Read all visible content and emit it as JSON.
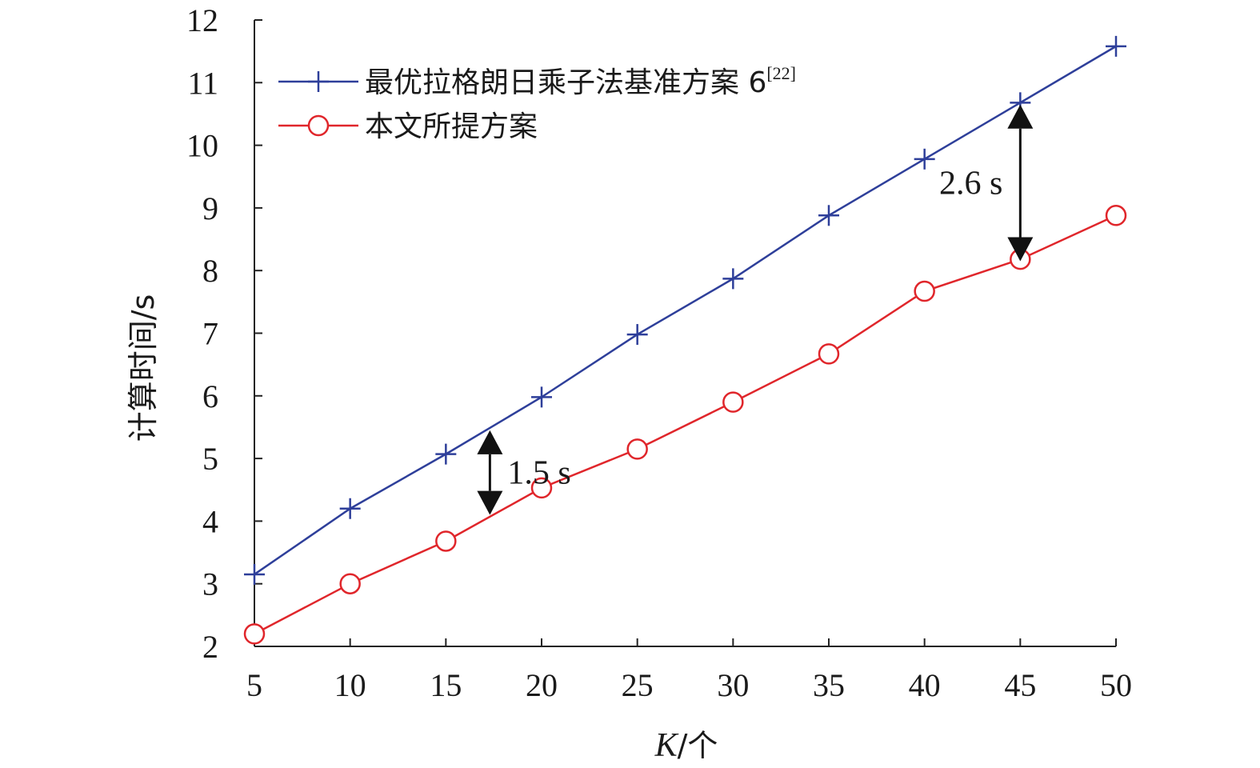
{
  "chart_data": {
    "type": "line",
    "title": "",
    "xlabel": "K/个",
    "xlabel_var": "K",
    "xlabel_unit": "/个",
    "ylabel": "计算时间/s",
    "x": [
      5,
      10,
      15,
      20,
      25,
      30,
      35,
      40,
      45,
      50
    ],
    "xlim": [
      5,
      50
    ],
    "ylim": [
      2,
      12
    ],
    "xticks": [
      5,
      10,
      15,
      20,
      25,
      30,
      35,
      40,
      45,
      50
    ],
    "yticks": [
      2,
      3,
      4,
      5,
      6,
      7,
      8,
      9,
      10,
      11,
      12
    ],
    "grid": false,
    "legend_position": "top-left",
    "series": [
      {
        "name": "最优拉格朗日乘子法基准方案 6",
        "name_ref": "[22]",
        "color": "#2e3f9a",
        "marker": "plus",
        "values": [
          3.15,
          4.2,
          5.07,
          5.98,
          6.98,
          7.87,
          8.88,
          9.78,
          10.68,
          11.58
        ]
      },
      {
        "name": "本文所提方案",
        "name_ref": "",
        "color": "#e0262b",
        "marker": "circle",
        "values": [
          2.2,
          3.0,
          3.68,
          4.53,
          5.15,
          5.9,
          6.67,
          7.67,
          8.18,
          8.88
        ]
      }
    ],
    "annotations": [
      {
        "text": "1.5 s",
        "x": 17.3,
        "y_top": 5.45,
        "y_bottom": 4.1
      },
      {
        "text": "2.6 s",
        "x": 45,
        "y_top": 10.65,
        "y_bottom": 8.15
      }
    ]
  }
}
